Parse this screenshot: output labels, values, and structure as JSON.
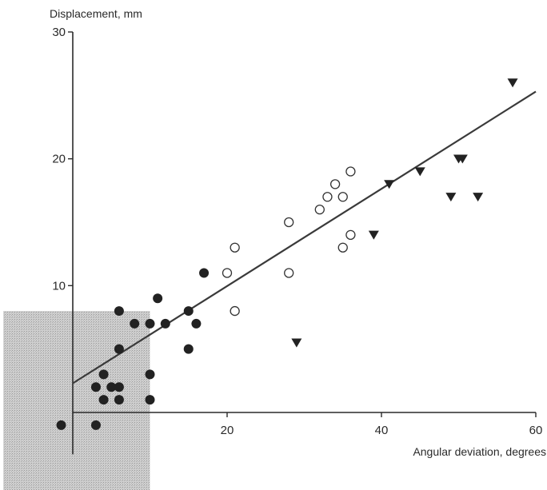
{
  "chart_data": {
    "type": "scatter",
    "xlabel": "Angular deviation, degrees",
    "ylabel": "Displacement, mm",
    "xlim": [
      -9,
      60
    ],
    "ylim": [
      -7,
      30
    ],
    "xticks": [
      20,
      40,
      60
    ],
    "yticks": [
      10,
      20,
      30
    ],
    "grid": false,
    "shaded_region": {
      "x": [
        -9,
        10
      ],
      "y": [
        -7,
        8
      ]
    },
    "regression_line": {
      "x": [
        0,
        60
      ],
      "y": [
        2.3,
        25.3
      ]
    },
    "series": [
      {
        "marker": "filled-circle",
        "points": [
          [
            -1.5,
            -1
          ],
          [
            3,
            -1
          ],
          [
            3,
            2
          ],
          [
            4,
            3
          ],
          [
            4,
            1
          ],
          [
            5,
            2
          ],
          [
            6,
            2
          ],
          [
            6,
            1
          ],
          [
            6,
            5
          ],
          [
            6,
            8
          ],
          [
            8,
            7
          ],
          [
            10,
            7
          ],
          [
            10,
            3
          ],
          [
            10,
            1
          ],
          [
            11,
            9
          ],
          [
            12,
            7
          ],
          [
            15,
            8
          ],
          [
            15,
            5
          ],
          [
            16,
            7
          ],
          [
            17,
            11
          ]
        ]
      },
      {
        "marker": "open-circle",
        "points": [
          [
            20,
            11
          ],
          [
            21,
            13
          ],
          [
            21,
            8
          ],
          [
            28,
            15
          ],
          [
            28,
            11
          ],
          [
            32,
            16
          ],
          [
            33,
            17
          ],
          [
            34,
            18
          ],
          [
            35,
            17
          ],
          [
            35,
            13
          ],
          [
            36,
            19
          ],
          [
            36,
            14
          ]
        ]
      },
      {
        "marker": "filled-triangle-down",
        "points": [
          [
            29,
            5.5
          ],
          [
            39,
            14
          ],
          [
            41,
            18
          ],
          [
            45,
            19
          ],
          [
            49,
            17
          ],
          [
            50,
            20
          ],
          [
            50.5,
            20
          ],
          [
            52.5,
            17
          ],
          [
            57,
            26
          ]
        ]
      }
    ]
  }
}
